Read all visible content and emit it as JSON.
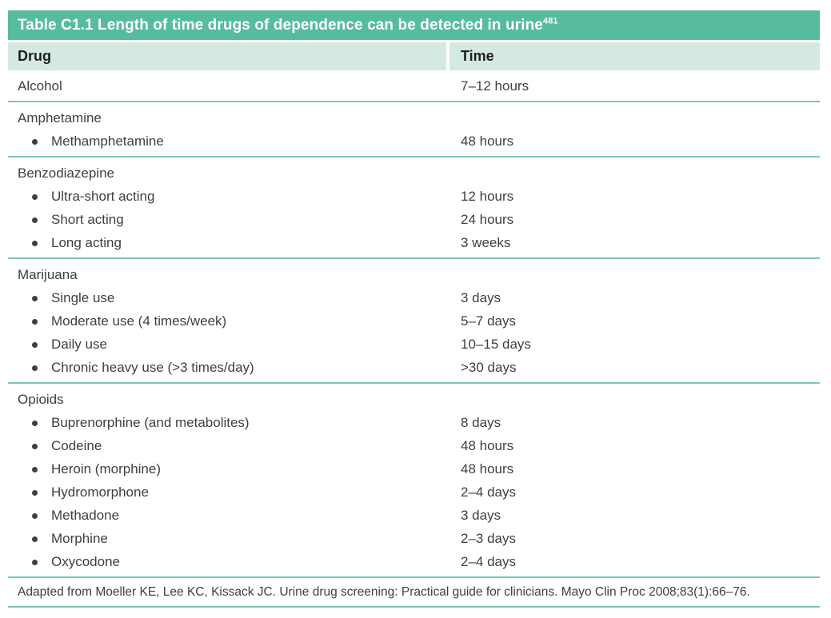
{
  "colors": {
    "header_bar": "#56BC9D",
    "header_row_background": "#D4EAE0",
    "separator_line": "#7CC8B0",
    "title_text": "#FFFFFF",
    "heading_text": "#1E1E1E",
    "body_text": "#3F3F3F"
  },
  "table": {
    "title": "Table C1.1 Length of time drugs of dependence can be detected in urine",
    "title_superscript": "481",
    "columns": [
      {
        "label": "Drug"
      },
      {
        "label": "Time"
      }
    ],
    "groups": [
      {
        "rows": [
          {
            "text": "Alcohol",
            "bullet": false,
            "time": "7–12 hours"
          }
        ]
      },
      {
        "rows": [
          {
            "text": "Amphetamine",
            "bullet": false,
            "time": ""
          },
          {
            "text": "Methamphetamine",
            "bullet": true,
            "time": "48 hours"
          }
        ]
      },
      {
        "rows": [
          {
            "text": "Benzodiazepine",
            "bullet": false,
            "time": ""
          },
          {
            "text": "Ultra-short acting",
            "bullet": true,
            "time": "12 hours"
          },
          {
            "text": "Short acting",
            "bullet": true,
            "time": "24 hours"
          },
          {
            "text": "Long acting",
            "bullet": true,
            "time": "3 weeks"
          }
        ]
      },
      {
        "rows": [
          {
            "text": "Marijuana",
            "bullet": false,
            "time": ""
          },
          {
            "text": "Single use",
            "bullet": true,
            "time": "3 days"
          },
          {
            "text": "Moderate use (4 times/week)",
            "bullet": true,
            "time": "5–7 days"
          },
          {
            "text": "Daily use",
            "bullet": true,
            "time": "10–15 days"
          },
          {
            "text": "Chronic heavy use (>3 times/day)",
            "bullet": true,
            "time": ">30 days"
          }
        ]
      },
      {
        "rows": [
          {
            "text": "Opioids",
            "bullet": false,
            "time": ""
          },
          {
            "text": "Buprenorphine (and metabolites)",
            "bullet": true,
            "time": "8 days"
          },
          {
            "text": "Codeine",
            "bullet": true,
            "time": "48 hours"
          },
          {
            "text": "Heroin (morphine)",
            "bullet": true,
            "time": "48 hours"
          },
          {
            "text": "Hydromorphone",
            "bullet": true,
            "time": "2–4 days"
          },
          {
            "text": "Methadone",
            "bullet": true,
            "time": "3 days"
          },
          {
            "text": "Morphine",
            "bullet": true,
            "time": "2–3 days"
          },
          {
            "text": "Oxycodone",
            "bullet": true,
            "time": "2–4 days"
          }
        ]
      }
    ],
    "footnote": "Adapted from Moeller KE, Lee KC, Kissack JC. Urine drug screening: Practical guide for clinicians. Mayo Clin Proc 2008;83(1):66–76."
  }
}
